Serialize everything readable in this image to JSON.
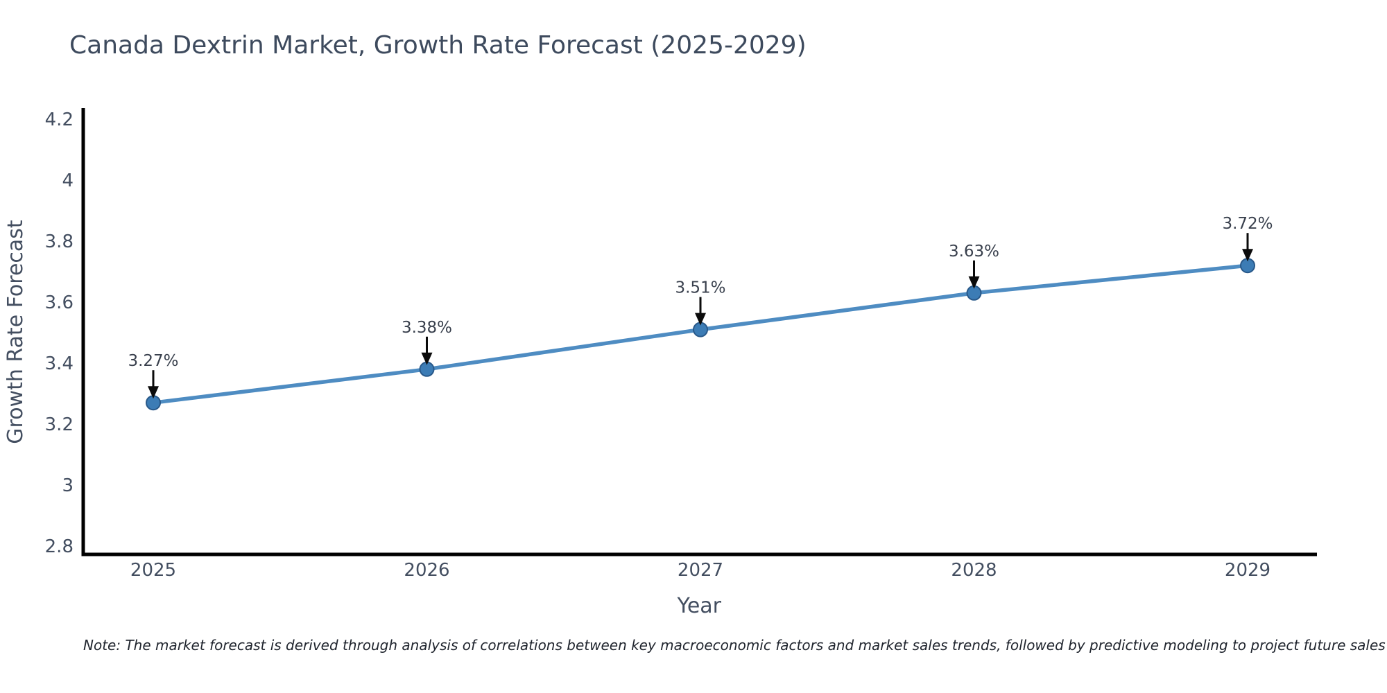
{
  "title": "Canada Dextrin Market, Growth Rate Forecast (2025-2029)",
  "note": {
    "text": "Note: The market forecast is derived through analysis of correlations between key macroeconomic factors and market sales trends, followed by predictive modeling to project future sales"
  },
  "chart_data": {
    "type": "line",
    "title": "Canada Dextrin Market, Growth Rate Forecast (2025-2029)",
    "categories": [
      "2025",
      "2026",
      "2027",
      "2028",
      "2029"
    ],
    "values": [
      3.27,
      3.38,
      3.51,
      3.63,
      3.72
    ],
    "data_labels": [
      "3.27%",
      "3.38%",
      "3.51%",
      "3.63%",
      "3.72%"
    ],
    "series_name": "Growth Rate Forecast",
    "xlabel": "Year",
    "ylabel": "Growth Rate Forecast",
    "yticks": {
      "values": [
        2.8,
        3.0,
        3.2,
        3.4,
        3.6,
        3.8,
        4.0,
        4.2
      ],
      "labels": [
        "2.8",
        "3",
        "3.2",
        "3.4",
        "3.6",
        "3.8",
        "4",
        "4.2"
      ]
    },
    "ylim": [
      2.77,
      4.24
    ],
    "xlim": [
      2024.74,
      2029.25
    ],
    "grid": false,
    "legend_position": "none",
    "annotation_style": "value label with downward arrow above each marker",
    "marker_shape": "circle"
  },
  "colors": {
    "line": "#4e8cc2",
    "marker_fill": "#3c7cb5",
    "marker_edge": "#29598a",
    "axis_spine": "#000000",
    "tick_text": "#434e60",
    "title_text": "#3d4a5d",
    "axis_label_text": "#434e60",
    "annotation_text": "#39404d",
    "arrow": "#0b0b0b",
    "note_text": "#20252e",
    "background": "#ffffff"
  }
}
